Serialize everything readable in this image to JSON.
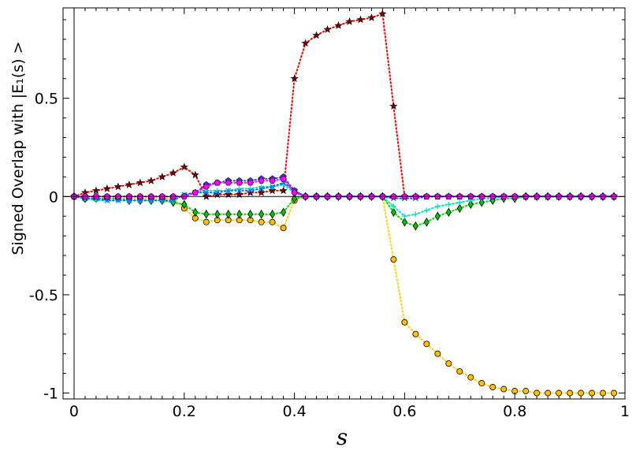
{
  "chart_data": {
    "type": "line",
    "xlabel": "s",
    "ylabel": "Signed Overlap with |E₁(s) >",
    "xlim": [
      -0.02,
      1.0
    ],
    "ylim": [
      -1.03,
      0.96
    ],
    "x_ticks": [
      0,
      0.2,
      0.4,
      0.6,
      0.8,
      1
    ],
    "x_tick_labels": [
      "0",
      "0.2",
      "0.4",
      "0.6",
      "0.8",
      "1"
    ],
    "y_ticks": [
      -1,
      -0.5,
      0,
      0.5
    ],
    "y_tick_labels": [
      "-1",
      "-0.5",
      "0",
      "0.5"
    ],
    "grid": false,
    "reference_lines": {
      "horizontal_at_y": 0,
      "vertical_at_x": 0
    },
    "x": [
      0,
      0.02,
      0.04,
      0.06,
      0.08,
      0.1,
      0.12,
      0.14,
      0.16,
      0.18,
      0.2,
      0.22,
      0.24,
      0.26,
      0.28,
      0.3,
      0.32,
      0.34,
      0.36,
      0.38,
      0.4,
      0.42,
      0.44,
      0.46,
      0.48,
      0.5,
      0.52,
      0.54,
      0.56,
      0.58,
      0.6,
      0.62,
      0.64,
      0.66,
      0.68,
      0.7,
      0.72,
      0.74,
      0.76,
      0.78,
      0.8,
      0.82,
      0.84,
      0.86,
      0.88,
      0.9,
      0.92,
      0.94,
      0.96,
      0.98
    ],
    "series": [
      {
        "color": "#ff0000",
        "marker": "star",
        "marker_fill": "#800000",
        "values": [
          0.0,
          0.02,
          0.03,
          0.04,
          0.05,
          0.06,
          0.07,
          0.08,
          0.1,
          0.12,
          0.15,
          0.11,
          0.0,
          0.01,
          0.01,
          0.01,
          0.02,
          0.02,
          0.03,
          0.03,
          0.6,
          0.78,
          0.82,
          0.85,
          0.87,
          0.89,
          0.9,
          0.91,
          0.93,
          0.46,
          0.0,
          0.0,
          0.0,
          0.0,
          0.0,
          0.0,
          0.0,
          0.0,
          0.0,
          0.0,
          0.0,
          0.0,
          0.0,
          0.0,
          0.0,
          0.0,
          0.0,
          0.0,
          0.0,
          0.0
        ]
      },
      {
        "color": "#ffd000",
        "marker": "circle",
        "marker_fill": "#ffc000",
        "values": [
          0.0,
          -0.01,
          -0.01,
          -0.01,
          -0.01,
          -0.01,
          -0.01,
          -0.01,
          -0.01,
          -0.01,
          -0.06,
          -0.11,
          -0.13,
          -0.12,
          -0.12,
          -0.12,
          -0.12,
          -0.13,
          -0.13,
          -0.16,
          -0.02,
          0.0,
          0.0,
          0.0,
          0.0,
          0.0,
          0.0,
          0.0,
          0.0,
          -0.32,
          -0.64,
          -0.7,
          -0.75,
          -0.8,
          -0.85,
          -0.89,
          -0.92,
          -0.95,
          -0.97,
          -0.98,
          -0.99,
          -0.99,
          -1.0,
          -1.0,
          -1.0,
          -1.0,
          -1.0,
          -1.0,
          -1.0,
          -1.0
        ]
      },
      {
        "color": "#00dd00",
        "marker": "diamond",
        "marker_fill": "#00c800",
        "values": [
          0.0,
          -0.01,
          -0.01,
          -0.01,
          -0.01,
          -0.02,
          -0.02,
          -0.02,
          -0.02,
          -0.03,
          -0.04,
          -0.08,
          -0.09,
          -0.09,
          -0.09,
          -0.09,
          -0.09,
          -0.09,
          -0.09,
          -0.08,
          -0.01,
          0.0,
          0.0,
          0.0,
          0.0,
          0.0,
          0.0,
          0.0,
          0.0,
          -0.08,
          -0.13,
          -0.15,
          -0.13,
          -0.1,
          -0.08,
          -0.06,
          -0.04,
          -0.03,
          -0.02,
          -0.01,
          -0.01,
          0.0,
          0.0,
          0.0,
          0.0,
          0.0,
          0.0,
          0.0,
          0.0,
          0.0
        ]
      },
      {
        "color": "#00e8b0",
        "marker": "plus",
        "marker_fill": "#00e8b0",
        "values": [
          0.0,
          -0.01,
          -0.02,
          -0.02,
          -0.02,
          -0.02,
          -0.02,
          -0.02,
          -0.02,
          -0.02,
          0.01,
          0.02,
          0.03,
          0.03,
          0.03,
          0.04,
          0.04,
          0.05,
          0.05,
          0.06,
          0.02,
          0.0,
          0.0,
          0.0,
          0.0,
          0.0,
          0.0,
          0.0,
          0.0,
          -0.05,
          -0.1,
          -0.09,
          -0.07,
          -0.05,
          -0.04,
          -0.03,
          -0.02,
          -0.01,
          -0.01,
          0.0,
          0.0,
          0.0,
          0.0,
          0.0,
          0.0,
          0.0,
          0.0,
          0.0,
          0.0,
          0.0
        ]
      },
      {
        "color": "#0070ff",
        "marker": "x",
        "marker_fill": "#0070ff",
        "values": [
          0.0,
          -0.01,
          -0.01,
          -0.02,
          -0.02,
          -0.02,
          -0.02,
          -0.02,
          -0.02,
          -0.02,
          0.01,
          0.02,
          0.02,
          0.02,
          0.03,
          0.03,
          0.03,
          0.04,
          0.05,
          0.07,
          0.03,
          0.0,
          0.0,
          0.0,
          0.0,
          0.0,
          0.0,
          0.0,
          0.0,
          -0.01,
          -0.01,
          -0.01,
          0.0,
          0.0,
          0.0,
          0.0,
          0.0,
          0.0,
          0.0,
          0.0,
          0.0,
          0.0,
          0.0,
          0.0,
          0.0,
          0.0,
          0.0,
          0.0,
          0.0,
          0.0
        ]
      },
      {
        "color": "#4040ff",
        "marker": "pentagon",
        "marker_fill": "#4040ff",
        "values": [
          0.0,
          0.0,
          0.0,
          0.0,
          0.0,
          0.0,
          0.0,
          0.0,
          0.0,
          0.0,
          0.0,
          0.02,
          0.06,
          0.07,
          0.08,
          0.08,
          0.08,
          0.09,
          0.09,
          0.1,
          0.03,
          0.0,
          0.0,
          0.0,
          0.0,
          0.0,
          0.0,
          0.0,
          0.0,
          0.0,
          0.0,
          0.0,
          0.0,
          0.0,
          0.0,
          0.0,
          0.0,
          0.0,
          0.0,
          0.0,
          0.0,
          0.0,
          0.0,
          0.0,
          0.0,
          0.0,
          0.0,
          0.0,
          0.0,
          0.0
        ]
      },
      {
        "color": "#ff00ff",
        "marker": "hexagon",
        "marker_fill": "#ff00ff",
        "values": [
          0.0,
          0.0,
          0.0,
          0.0,
          0.0,
          0.0,
          0.0,
          0.0,
          0.0,
          0.0,
          0.0,
          0.02,
          0.05,
          0.07,
          0.07,
          0.07,
          0.07,
          0.08,
          0.08,
          0.09,
          0.02,
          0.0,
          0.0,
          0.0,
          0.0,
          0.0,
          0.0,
          0.0,
          0.0,
          0.0,
          0.0,
          0.0,
          0.0,
          0.0,
          0.0,
          0.0,
          0.0,
          0.0,
          0.0,
          0.0,
          0.0,
          0.0,
          0.0,
          0.0,
          0.0,
          0.0,
          0.0,
          0.0,
          0.0,
          0.0
        ]
      }
    ]
  }
}
